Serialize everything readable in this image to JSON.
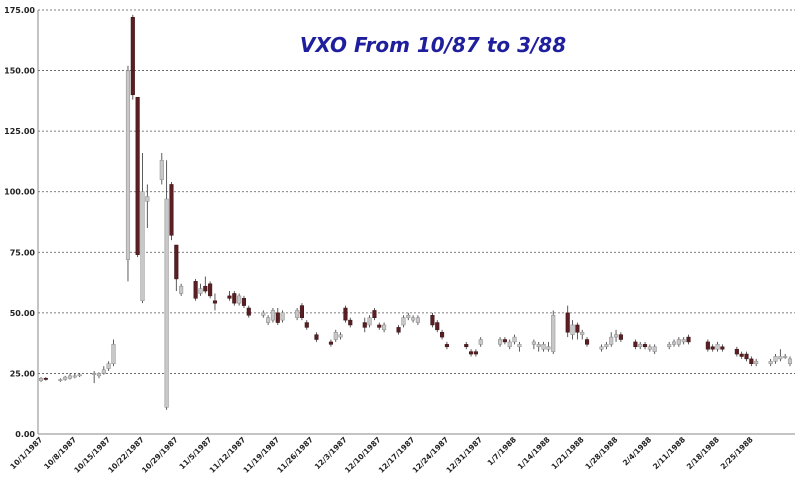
{
  "chart_data": {
    "type": "candlestick",
    "title": "VXO From 10/87 to 3/88",
    "xlabel": "",
    "ylabel": "",
    "ylim": [
      0,
      175
    ],
    "y_ticks": [
      "0.00",
      "25.00",
      "50.00",
      "75.00",
      "100.00",
      "125.00",
      "150.00",
      "175.00"
    ],
    "grid": "horizontal dotted",
    "x_tick_labels": [
      "10/1/1987",
      "10/8/1987",
      "10/15/1987",
      "10/22/1987",
      "10/29/1987",
      "11/5/1987",
      "11/12/1987",
      "11/19/1987",
      "11/26/1987",
      "12/3/1987",
      "12/10/1987",
      "12/17/1987",
      "12/24/1987",
      "12/31/1987",
      "1/7/1988",
      "1/14/1988",
      "1/21/1988",
      "1/28/1988",
      "2/4/1988",
      "2/11/1988",
      "2/18/1988",
      "2/25/1988"
    ],
    "colors": {
      "up": "#c8c8c8",
      "down": "#5a1e23",
      "grid": "#555555",
      "title": "#1f1f9e"
    },
    "candles": [
      {
        "date": "10/1/1987",
        "open": 22,
        "high": 23.5,
        "low": 21.5,
        "close": 23
      },
      {
        "date": "10/2/1987",
        "open": 23,
        "high": 23.5,
        "low": 22,
        "close": 22.5
      },
      {
        "date": "10/5/1987",
        "open": 22,
        "high": 23,
        "low": 21.5,
        "close": 22.5
      },
      {
        "date": "10/6/1987",
        "open": 22.5,
        "high": 24,
        "low": 22,
        "close": 23.5
      },
      {
        "date": "10/7/1987",
        "open": 23,
        "high": 25,
        "low": 22.5,
        "close": 24
      },
      {
        "date": "10/8/1987",
        "open": 24,
        "high": 25,
        "low": 23,
        "close": 24
      },
      {
        "date": "10/9/1987",
        "open": 24,
        "high": 25,
        "low": 23.5,
        "close": 24.5
      },
      {
        "date": "10/12/1987",
        "open": 24.5,
        "high": 26,
        "low": 21,
        "close": 25
      },
      {
        "date": "10/13/1987",
        "open": 24,
        "high": 25.5,
        "low": 23,
        "close": 25
      },
      {
        "date": "10/14/1987",
        "open": 25,
        "high": 28,
        "low": 24.5,
        "close": 26.5
      },
      {
        "date": "10/15/1987",
        "open": 27,
        "high": 30,
        "low": 26,
        "close": 29
      },
      {
        "date": "10/16/1987",
        "open": 29,
        "high": 39,
        "low": 28,
        "close": 37
      },
      {
        "date": "10/19/1987",
        "open": 72,
        "high": 152,
        "low": 63,
        "close": 150
      },
      {
        "date": "10/20/1987",
        "open": 172,
        "high": 173,
        "low": 138,
        "close": 140
      },
      {
        "date": "10/21/1987",
        "open": 139,
        "high": 139,
        "low": 73,
        "close": 74
      },
      {
        "date": "10/22/1987",
        "open": 55,
        "high": 116,
        "low": 54,
        "close": 100
      },
      {
        "date": "10/23/1987",
        "open": 96,
        "high": 103,
        "low": 85,
        "close": 98
      },
      {
        "date": "10/26/1987",
        "open": 105,
        "high": 116,
        "low": 103,
        "close": 113
      },
      {
        "date": "10/27/1987",
        "open": 11,
        "high": 113,
        "low": 10,
        "close": 97
      },
      {
        "date": "10/28/1987",
        "open": 103,
        "high": 104,
        "low": 80,
        "close": 82
      },
      {
        "date": "10/29/1987",
        "open": 78,
        "high": 78,
        "low": 59,
        "close": 64
      },
      {
        "date": "10/30/1987",
        "open": 58,
        "high": 62,
        "low": 57,
        "close": 61
      },
      {
        "date": "11/2/1987",
        "open": 63,
        "high": 64,
        "low": 55,
        "close": 56
      },
      {
        "date": "11/3/1987",
        "open": 58,
        "high": 62,
        "low": 57,
        "close": 60
      },
      {
        "date": "11/4/1987",
        "open": 61,
        "high": 65,
        "low": 58,
        "close": 59
      },
      {
        "date": "11/5/1987",
        "open": 62,
        "high": 63,
        "low": 56,
        "close": 57
      },
      {
        "date": "11/6/1987",
        "open": 55,
        "high": 58,
        "low": 51,
        "close": 54
      },
      {
        "date": "11/9/1987",
        "open": 57,
        "high": 59,
        "low": 55,
        "close": 56
      },
      {
        "date": "11/10/1987",
        "open": 58,
        "high": 59,
        "low": 53,
        "close": 54
      },
      {
        "date": "11/11/1987",
        "open": 54,
        "high": 58,
        "low": 53,
        "close": 57
      },
      {
        "date": "11/12/1987",
        "open": 56,
        "high": 57,
        "low": 52,
        "close": 53
      },
      {
        "date": "11/13/1987",
        "open": 52,
        "high": 53,
        "low": 48,
        "close": 49
      },
      {
        "date": "11/16/1987",
        "open": 49,
        "high": 51,
        "low": 48,
        "close": 50
      },
      {
        "date": "11/17/1987",
        "open": 46,
        "high": 49,
        "low": 45,
        "close": 48
      },
      {
        "date": "11/18/1987",
        "open": 47,
        "high": 52,
        "low": 46,
        "close": 51
      },
      {
        "date": "11/19/1987",
        "open": 50,
        "high": 52,
        "low": 45,
        "close": 46
      },
      {
        "date": "11/20/1987",
        "open": 47,
        "high": 51,
        "low": 46,
        "close": 50
      },
      {
        "date": "11/23/1987",
        "open": 48,
        "high": 52,
        "low": 47,
        "close": 51
      },
      {
        "date": "11/24/1987",
        "open": 53,
        "high": 54,
        "low": 47,
        "close": 48
      },
      {
        "date": "11/25/1987",
        "open": 46,
        "high": 47,
        "low": 43,
        "close": 44
      },
      {
        "date": "11/27/1987",
        "open": 41,
        "high": 42,
        "low": 38,
        "close": 39
      },
      {
        "date": "11/30/1987",
        "open": 38,
        "high": 39,
        "low": 36,
        "close": 37
      },
      {
        "date": "12/1/1987",
        "open": 39,
        "high": 43,
        "low": 38,
        "close": 42
      },
      {
        "date": "12/2/1987",
        "open": 40,
        "high": 42,
        "low": 39,
        "close": 41
      },
      {
        "date": "12/3/1987",
        "open": 52,
        "high": 53,
        "low": 46,
        "close": 47
      },
      {
        "date": "12/4/1987",
        "open": 47,
        "high": 48,
        "low": 44,
        "close": 45
      },
      {
        "date": "12/7/1987",
        "open": 46,
        "high": 48,
        "low": 42,
        "close": 44
      },
      {
        "date": "12/8/1987",
        "open": 45,
        "high": 49,
        "low": 44,
        "close": 48
      },
      {
        "date": "12/9/1987",
        "open": 51,
        "high": 52,
        "low": 47,
        "close": 48
      },
      {
        "date": "12/10/1987",
        "open": 45,
        "high": 46,
        "low": 43,
        "close": 44
      },
      {
        "date": "12/11/1987",
        "open": 43,
        "high": 46,
        "low": 42,
        "close": 45
      },
      {
        "date": "12/14/1987",
        "open": 44,
        "high": 45,
        "low": 41,
        "close": 42
      },
      {
        "date": "12/15/1987",
        "open": 45,
        "high": 49,
        "low": 44,
        "close": 48
      },
      {
        "date": "12/16/1987",
        "open": 48,
        "high": 50,
        "low": 47,
        "close": 49
      },
      {
        "date": "12/17/1987",
        "open": 47,
        "high": 49,
        "low": 46,
        "close": 48
      },
      {
        "date": "12/18/1987",
        "open": 46,
        "high": 49,
        "low": 45,
        "close": 48
      },
      {
        "date": "12/21/1987",
        "open": 49,
        "high": 50,
        "low": 44,
        "close": 45
      },
      {
        "date": "12/22/1987",
        "open": 46,
        "high": 47,
        "low": 42,
        "close": 43
      },
      {
        "date": "12/23/1987",
        "open": 42,
        "high": 43,
        "low": 39,
        "close": 40
      },
      {
        "date": "12/24/1987",
        "open": 37,
        "high": 38,
        "low": 35,
        "close": 36
      },
      {
        "date": "12/28/1987",
        "open": 37,
        "high": 38,
        "low": 35,
        "close": 36
      },
      {
        "date": "12/29/1987",
        "open": 34,
        "high": 35,
        "low": 32,
        "close": 33
      },
      {
        "date": "12/30/1987",
        "open": 34,
        "high": 35,
        "low": 32,
        "close": 33
      },
      {
        "date": "12/31/1987",
        "open": 37,
        "high": 40,
        "low": 36,
        "close": 39
      },
      {
        "date": "1/4/1988",
        "open": 37,
        "high": 40,
        "low": 36,
        "close": 39
      },
      {
        "date": "1/5/1988",
        "open": 39,
        "high": 40,
        "low": 37,
        "close": 38
      },
      {
        "date": "1/6/1988",
        "open": 36,
        "high": 39,
        "low": 35,
        "close": 38
      },
      {
        "date": "1/7/1988",
        "open": 38,
        "high": 41,
        "low": 37,
        "close": 40
      },
      {
        "date": "1/8/1988",
        "open": 36,
        "high": 38,
        "low": 34,
        "close": 37
      },
      {
        "date": "1/11/1988",
        "open": 37,
        "high": 39,
        "low": 35,
        "close": 38
      },
      {
        "date": "1/12/1988",
        "open": 36,
        "high": 38,
        "low": 34,
        "close": 37
      },
      {
        "date": "1/13/1988",
        "open": 35,
        "high": 38,
        "low": 34,
        "close": 37
      },
      {
        "date": "1/14/1988",
        "open": 35,
        "high": 38,
        "low": 34,
        "close": 36
      },
      {
        "date": "1/15/1988",
        "open": 34,
        "high": 51,
        "low": 33,
        "close": 49
      },
      {
        "date": "1/18/1988",
        "open": 50,
        "high": 53,
        "low": 40,
        "close": 42
      },
      {
        "date": "1/19/1988",
        "open": 41,
        "high": 47,
        "low": 39,
        "close": 45
      },
      {
        "date": "1/20/1988",
        "open": 45,
        "high": 46,
        "low": 39,
        "close": 42
      },
      {
        "date": "1/21/1988",
        "open": 41,
        "high": 43,
        "low": 39,
        "close": 42
      },
      {
        "date": "1/22/1988",
        "open": 39,
        "high": 40,
        "low": 36,
        "close": 37
      },
      {
        "date": "1/25/1988",
        "open": 35,
        "high": 37,
        "low": 34,
        "close": 36
      },
      {
        "date": "1/26/1988",
        "open": 36,
        "high": 38,
        "low": 35,
        "close": 37
      },
      {
        "date": "1/27/1988",
        "open": 37,
        "high": 42,
        "low": 36,
        "close": 40
      },
      {
        "date": "1/28/1988",
        "open": 40,
        "high": 43,
        "low": 38,
        "close": 41
      },
      {
        "date": "1/29/1988",
        "open": 41,
        "high": 42,
        "low": 38,
        "close": 39
      },
      {
        "date": "2/1/1988",
        "open": 38,
        "high": 39,
        "low": 35,
        "close": 36
      },
      {
        "date": "2/2/1988",
        "open": 36,
        "high": 38,
        "low": 35,
        "close": 37
      },
      {
        "date": "2/3/1988",
        "open": 37,
        "high": 38,
        "low": 35,
        "close": 36
      },
      {
        "date": "2/4/1988",
        "open": 35,
        "high": 37,
        "low": 34,
        "close": 36
      },
      {
        "date": "2/5/1988",
        "open": 34,
        "high": 37,
        "low": 33,
        "close": 36
      },
      {
        "date": "2/8/1988",
        "open": 36,
        "high": 38,
        "low": 35,
        "close": 37
      },
      {
        "date": "2/9/1988",
        "open": 37,
        "high": 39,
        "low": 36,
        "close": 38
      },
      {
        "date": "2/10/1988",
        "open": 37,
        "high": 40,
        "low": 36,
        "close": 39
      },
      {
        "date": "2/11/1988",
        "open": 38,
        "high": 40,
        "low": 37,
        "close": 39
      },
      {
        "date": "2/12/1988",
        "open": 40,
        "high": 41,
        "low": 37,
        "close": 38
      },
      {
        "date": "2/16/1988",
        "open": 38,
        "high": 39,
        "low": 34,
        "close": 35
      },
      {
        "date": "2/17/1988",
        "open": 36,
        "high": 37,
        "low": 34,
        "close": 35
      },
      {
        "date": "2/18/1988",
        "open": 35,
        "high": 38,
        "low": 34,
        "close": 37
      },
      {
        "date": "2/19/1988",
        "open": 36,
        "high": 37,
        "low": 34,
        "close": 35
      },
      {
        "date": "2/22/1988",
        "open": 35,
        "high": 36,
        "low": 32,
        "close": 33
      },
      {
        "date": "2/23/1988",
        "open": 33,
        "high": 34,
        "low": 31,
        "close": 32
      },
      {
        "date": "2/24/1988",
        "open": 33,
        "high": 34,
        "low": 30,
        "close": 31
      },
      {
        "date": "2/25/1988",
        "open": 31,
        "high": 32,
        "low": 28,
        "close": 29
      },
      {
        "date": "2/26/1988",
        "open": 29,
        "high": 31,
        "low": 28,
        "close": 30
      },
      {
        "date": "2/29/1988",
        "open": 29,
        "high": 31,
        "low": 28,
        "close": 30
      },
      {
        "date": "3/1/1988",
        "open": 30,
        "high": 33,
        "low": 29,
        "close": 32
      },
      {
        "date": "3/2/1988",
        "open": 31,
        "high": 35,
        "low": 30,
        "close": 32
      },
      {
        "date": "3/3/1988",
        "open": 32,
        "high": 33,
        "low": 31,
        "close": 32
      },
      {
        "date": "3/4/1988",
        "open": 29,
        "high": 32,
        "low": 28,
        "close": 31
      }
    ]
  }
}
